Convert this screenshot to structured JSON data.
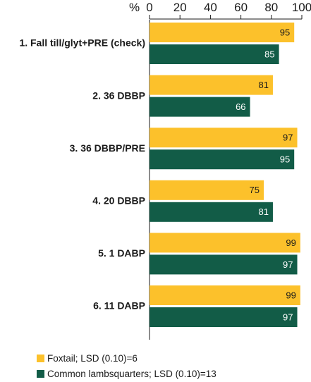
{
  "chart_data": {
    "type": "bar",
    "orientation": "horizontal",
    "unit_label": "%",
    "xlim": [
      0,
      100
    ],
    "x_ticks": [
      "0",
      "20",
      "40",
      "60",
      "80",
      "100"
    ],
    "categories": [
      "1. Fall till/glyt+PRE (check)",
      "2. 36 DBBP",
      "3. 36 DBBP/PRE",
      "4. 20 DBBP",
      "5. 1 DABP",
      "6. 11 DABP"
    ],
    "series": [
      {
        "name": "Foxtail; LSD (0.10)=6",
        "color": "#fcc12b",
        "label_color": "#1a1a1a",
        "values": [
          95,
          81,
          97,
          75,
          99,
          99
        ]
      },
      {
        "name": "Common lambsquarters; LSD (0.10)=13",
        "color": "#125c47",
        "label_color": "#ffffff",
        "values": [
          85,
          66,
          95,
          81,
          97,
          97
        ]
      }
    ],
    "legend_position": "bottom-left",
    "grid": false
  }
}
